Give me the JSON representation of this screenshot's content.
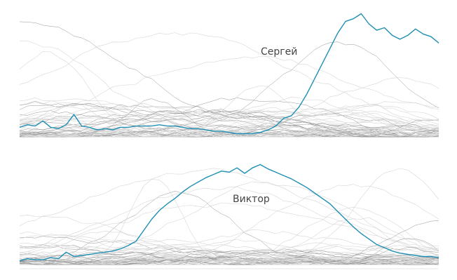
{
  "chart_data": [
    {
      "type": "line",
      "panel": "top",
      "highlight": {
        "name": "Сергей",
        "color": "#1f8fb4",
        "values": [
          0.08,
          0.1,
          0.09,
          0.13,
          0.08,
          0.07,
          0.1,
          0.18,
          0.09,
          0.08,
          0.06,
          0.07,
          0.06,
          0.08,
          0.08,
          0.09,
          0.09,
          0.09,
          0.1,
          0.09,
          0.09,
          0.08,
          0.07,
          0.07,
          0.06,
          0.05,
          0.05,
          0.04,
          0.03,
          0.03,
          0.03,
          0.04,
          0.06,
          0.09,
          0.15,
          0.17,
          0.24,
          0.34,
          0.46,
          0.58,
          0.7,
          0.82,
          0.91,
          0.93,
          0.97,
          0.89,
          0.84,
          0.86,
          0.8,
          0.77,
          0.8,
          0.85,
          0.81,
          0.79,
          0.74
        ]
      },
      "background_series_count": 55
    },
    {
      "type": "line",
      "panel": "bottom",
      "highlight": {
        "name": "Виктор",
        "color": "#1f8fb4",
        "values": [
          0.04,
          0.06,
          0.05,
          0.05,
          0.07,
          0.06,
          0.12,
          0.08,
          0.09,
          0.1,
          0.11,
          0.12,
          0.13,
          0.15,
          0.18,
          0.22,
          0.32,
          0.42,
          0.5,
          0.56,
          0.61,
          0.67,
          0.72,
          0.76,
          0.8,
          0.83,
          0.86,
          0.85,
          0.89,
          0.84,
          0.89,
          0.92,
          0.88,
          0.85,
          0.82,
          0.79,
          0.75,
          0.71,
          0.66,
          0.61,
          0.56,
          0.49,
          0.42,
          0.35,
          0.29,
          0.24,
          0.19,
          0.16,
          0.13,
          0.11,
          0.1,
          0.09,
          0.08,
          0.08,
          0.07
        ]
      },
      "background_series_count": 55
    }
  ]
}
